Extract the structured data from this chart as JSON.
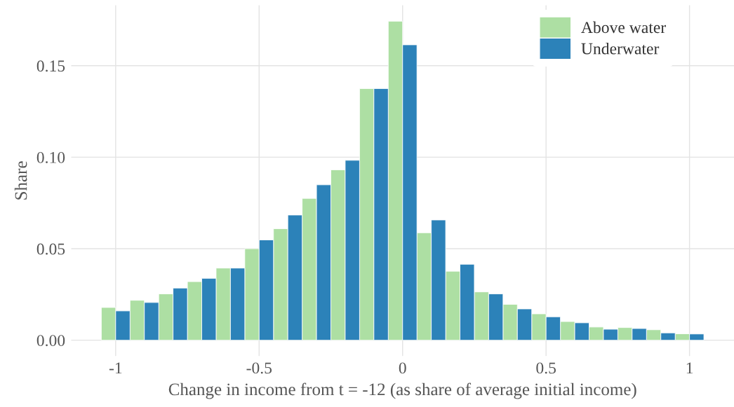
{
  "chart_data": {
    "type": "bar",
    "xlabel": "Change in income from t = -12 (as share of average initial income)",
    "ylabel": "Share",
    "x": [
      -1,
      -0.9,
      -0.8,
      -0.7,
      -0.6,
      -0.5,
      -0.4,
      -0.3,
      -0.2,
      -0.1,
      0,
      0.1,
      0.2,
      0.3,
      0.4,
      0.5,
      0.6,
      0.7,
      0.8,
      0.9,
      1
    ],
    "series": [
      {
        "name": "Above water",
        "color": "#addfa3",
        "values": [
          0.0179,
          0.0218,
          0.0253,
          0.032,
          0.0394,
          0.05,
          0.0609,
          0.0775,
          0.0931,
          0.1375,
          0.1743,
          0.0587,
          0.0377,
          0.0264,
          0.0196,
          0.0144,
          0.0102,
          0.0072,
          0.0069,
          0.0057,
          0.0035
        ]
      },
      {
        "name": "Underwater",
        "color": "#2c82b9",
        "values": [
          0.016,
          0.0206,
          0.0285,
          0.0338,
          0.0394,
          0.0548,
          0.0684,
          0.0849,
          0.0983,
          0.1375,
          0.1614,
          0.0657,
          0.0415,
          0.0253,
          0.0171,
          0.0128,
          0.0095,
          0.006,
          0.0064,
          0.004,
          0.0034
        ]
      }
    ],
    "xlim": [
      -1.155,
      1.155
    ],
    "xticks": [
      {
        "value": -1,
        "label": "-1"
      },
      {
        "value": -0.5,
        "label": "-0.5"
      },
      0,
      0.5,
      1
    ],
    "ylim": [
      -0.0087,
      0.183
    ],
    "yticks": [
      {
        "value": 0,
        "label": "0.00"
      },
      {
        "value": 0.05,
        "label": "0.05"
      },
      {
        "value": 0.1,
        "label": "0.10"
      },
      {
        "value": 0.15,
        "label": "0.15"
      }
    ],
    "grid": true,
    "legend": "top right"
  }
}
